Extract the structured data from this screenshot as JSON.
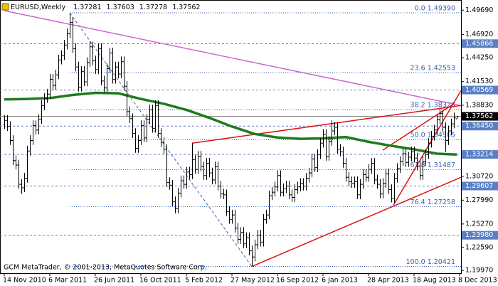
{
  "chart_data": {
    "type": "ohlc",
    "title": "EURUSD,Weekly",
    "bar_color": "#000000",
    "open": [
      1.366,
      1.371,
      1.364,
      1.348,
      1.325,
      1.32,
      1.298,
      1.294,
      1.305,
      1.336,
      1.348,
      1.365,
      1.36,
      1.372,
      1.388,
      1.396,
      1.401,
      1.418,
      1.411,
      1.423,
      1.44,
      1.445,
      1.457,
      1.47,
      1.483,
      1.453,
      1.432,
      1.409,
      1.427,
      1.415,
      1.437,
      1.455,
      1.439,
      1.429,
      1.453,
      1.416,
      1.408,
      1.43,
      1.448,
      1.418,
      1.432,
      1.424,
      1.438,
      1.41,
      1.381,
      1.373,
      1.356,
      1.339,
      1.348,
      1.365,
      1.351,
      1.372,
      1.383,
      1.362,
      1.388,
      1.356,
      1.346,
      1.338,
      1.3,
      1.297,
      1.278,
      1.27,
      1.288,
      1.302,
      1.298,
      1.312,
      1.309,
      1.326,
      1.315,
      1.33,
      1.318,
      1.308,
      1.322,
      1.311,
      1.303,
      1.318,
      1.296,
      1.287,
      1.286,
      1.267,
      1.258,
      1.263,
      1.248,
      1.235,
      1.243,
      1.23,
      1.237,
      1.222,
      1.215,
      1.229,
      1.24,
      1.232,
      1.258,
      1.263,
      1.285,
      1.289,
      1.295,
      1.308,
      1.289,
      1.293,
      1.296,
      1.286,
      1.283,
      1.292,
      1.295,
      1.299,
      1.296,
      1.305,
      1.311,
      1.327,
      1.317,
      1.332,
      1.345,
      1.355,
      1.33,
      1.347,
      1.359,
      1.363,
      1.338,
      1.335,
      1.322,
      1.306,
      1.301,
      1.299,
      1.301,
      1.286,
      1.298,
      1.309,
      1.306,
      1.315,
      1.322,
      1.303,
      1.298,
      1.287,
      1.299,
      1.31,
      1.292,
      1.282,
      1.305,
      1.316,
      1.324,
      1.333,
      1.323,
      1.329,
      1.335,
      1.328,
      1.319,
      1.308,
      1.324,
      1.332,
      1.345,
      1.353,
      1.36,
      1.372,
      1.379,
      1.363,
      1.348,
      1.359,
      1.367,
      1.37281
    ],
    "high": [
      1.377,
      1.377,
      1.37,
      1.354,
      1.331,
      1.326,
      1.304,
      1.311,
      1.342,
      1.354,
      1.371,
      1.371,
      1.378,
      1.394,
      1.402,
      1.407,
      1.424,
      1.424,
      1.429,
      1.446,
      1.451,
      1.463,
      1.476,
      1.4939,
      1.489,
      1.459,
      1.438,
      1.433,
      1.433,
      1.443,
      1.461,
      1.461,
      1.445,
      1.459,
      1.459,
      1.422,
      1.436,
      1.454,
      1.454,
      1.438,
      1.438,
      1.444,
      1.444,
      1.416,
      1.387,
      1.379,
      1.362,
      1.354,
      1.371,
      1.371,
      1.378,
      1.389,
      1.389,
      1.394,
      1.394,
      1.362,
      1.352,
      1.344,
      1.306,
      1.303,
      1.284,
      1.294,
      1.308,
      1.308,
      1.318,
      1.318,
      1.345,
      1.332,
      1.336,
      1.336,
      1.324,
      1.328,
      1.328,
      1.317,
      1.324,
      1.324,
      1.302,
      1.293,
      1.292,
      1.273,
      1.269,
      1.269,
      1.254,
      1.249,
      1.249,
      1.243,
      1.243,
      1.228,
      1.235,
      1.246,
      1.246,
      1.264,
      1.269,
      1.291,
      1.295,
      1.301,
      1.314,
      1.314,
      1.299,
      1.302,
      1.302,
      1.292,
      1.298,
      1.301,
      1.305,
      1.305,
      1.311,
      1.317,
      1.333,
      1.333,
      1.338,
      1.351,
      1.361,
      1.361,
      1.353,
      1.371,
      1.369,
      1.369,
      1.344,
      1.341,
      1.328,
      1.312,
      1.307,
      1.307,
      1.307,
      1.304,
      1.315,
      1.315,
      1.321,
      1.328,
      1.328,
      1.309,
      1.304,
      1.305,
      1.316,
      1.316,
      1.298,
      1.311,
      1.322,
      1.33,
      1.339,
      1.339,
      1.335,
      1.341,
      1.341,
      1.334,
      1.325,
      1.33,
      1.338,
      1.351,
      1.359,
      1.366,
      1.378,
      1.3832,
      1.382,
      1.369,
      1.365,
      1.373,
      1.38,
      1.37603
    ],
    "low": [
      1.361,
      1.359,
      1.343,
      1.32,
      1.315,
      1.293,
      1.287,
      1.289,
      1.3,
      1.331,
      1.343,
      1.355,
      1.355,
      1.367,
      1.383,
      1.391,
      1.396,
      1.406,
      1.406,
      1.418,
      1.435,
      1.44,
      1.452,
      1.465,
      1.448,
      1.427,
      1.404,
      1.404,
      1.41,
      1.41,
      1.432,
      1.434,
      1.424,
      1.424,
      1.411,
      1.403,
      1.403,
      1.425,
      1.413,
      1.413,
      1.419,
      1.419,
      1.405,
      1.376,
      1.368,
      1.351,
      1.334,
      1.334,
      1.343,
      1.346,
      1.346,
      1.367,
      1.357,
      1.357,
      1.351,
      1.341,
      1.333,
      1.295,
      1.292,
      1.273,
      1.265,
      1.265,
      1.283,
      1.293,
      1.293,
      1.304,
      1.304,
      1.31,
      1.31,
      1.313,
      1.303,
      1.303,
      1.306,
      1.298,
      1.298,
      1.291,
      1.282,
      1.281,
      1.262,
      1.253,
      1.253,
      1.243,
      1.23,
      1.23,
      1.225,
      1.225,
      1.217,
      1.2042,
      1.21,
      1.224,
      1.227,
      1.227,
      1.253,
      1.258,
      1.28,
      1.284,
      1.29,
      1.284,
      1.284,
      1.288,
      1.281,
      1.278,
      1.278,
      1.287,
      1.29,
      1.291,
      1.291,
      1.3,
      1.306,
      1.312,
      1.312,
      1.327,
      1.34,
      1.325,
      1.325,
      1.342,
      1.354,
      1.333,
      1.33,
      1.317,
      1.301,
      1.296,
      1.294,
      1.294,
      1.281,
      1.281,
      1.293,
      1.301,
      1.301,
      1.31,
      1.298,
      1.293,
      1.282,
      1.282,
      1.294,
      1.287,
      1.2773,
      1.277,
      1.3,
      1.311,
      1.319,
      1.318,
      1.318,
      1.324,
      1.323,
      1.314,
      1.303,
      1.303,
      1.319,
      1.327,
      1.34,
      1.348,
      1.355,
      1.367,
      1.358,
      1.335,
      1.343,
      1.354,
      1.362,
      1.37278
    ],
    "close": [
      1.371,
      1.364,
      1.348,
      1.325,
      1.32,
      1.298,
      1.294,
      1.305,
      1.336,
      1.348,
      1.365,
      1.36,
      1.372,
      1.388,
      1.396,
      1.401,
      1.418,
      1.411,
      1.423,
      1.44,
      1.445,
      1.457,
      1.47,
      1.483,
      1.453,
      1.432,
      1.409,
      1.427,
      1.415,
      1.437,
      1.455,
      1.439,
      1.429,
      1.453,
      1.416,
      1.408,
      1.43,
      1.448,
      1.418,
      1.432,
      1.424,
      1.438,
      1.41,
      1.381,
      1.373,
      1.356,
      1.339,
      1.348,
      1.365,
      1.351,
      1.372,
      1.383,
      1.362,
      1.388,
      1.356,
      1.346,
      1.338,
      1.3,
      1.297,
      1.278,
      1.27,
      1.288,
      1.302,
      1.298,
      1.312,
      1.309,
      1.326,
      1.315,
      1.33,
      1.318,
      1.308,
      1.322,
      1.311,
      1.303,
      1.318,
      1.296,
      1.287,
      1.286,
      1.267,
      1.258,
      1.263,
      1.248,
      1.235,
      1.243,
      1.23,
      1.237,
      1.222,
      1.215,
      1.229,
      1.24,
      1.232,
      1.258,
      1.263,
      1.285,
      1.289,
      1.295,
      1.308,
      1.289,
      1.293,
      1.296,
      1.286,
      1.283,
      1.292,
      1.295,
      1.299,
      1.296,
      1.305,
      1.311,
      1.327,
      1.317,
      1.332,
      1.345,
      1.355,
      1.33,
      1.347,
      1.359,
      1.363,
      1.338,
      1.335,
      1.322,
      1.306,
      1.301,
      1.299,
      1.301,
      1.286,
      1.298,
      1.309,
      1.306,
      1.315,
      1.322,
      1.303,
      1.298,
      1.287,
      1.299,
      1.31,
      1.292,
      1.282,
      1.305,
      1.316,
      1.324,
      1.333,
      1.323,
      1.329,
      1.335,
      1.328,
      1.319,
      1.308,
      1.324,
      1.332,
      1.345,
      1.353,
      1.36,
      1.372,
      1.379,
      1.363,
      1.348,
      1.359,
      1.367,
      1.374,
      1.37562
    ],
    "xlim": [
      -1.5,
      160.5
    ],
    "xticks": [
      {
        "value": 0,
        "label": "14 Nov 2010"
      },
      {
        "value": 16,
        "label": "6 Mar 2011"
      },
      {
        "value": 32,
        "label": "26 Jun 2011"
      },
      {
        "value": 48,
        "label": "16 Oct 2011"
      },
      {
        "value": 64,
        "label": "5 Feb 2012"
      },
      {
        "value": 80,
        "label": "27 May 2012"
      },
      {
        "value": 96,
        "label": "16 Sep 2012"
      },
      {
        "value": 112,
        "label": "6 Jan 2013"
      },
      {
        "value": 128,
        "label": "28 Apr 2013"
      },
      {
        "value": 144,
        "label": "18 Aug 2013"
      },
      {
        "value": 160,
        "label": "8 Dec 2013"
      }
    ],
    "ylim": [
      1.1965,
      1.5085
    ],
    "yticks": [
      {
        "value": 1.4969,
        "label": "1.49690"
      },
      {
        "value": 1.4692,
        "label": "1.46920"
      },
      {
        "value": 1.4425,
        "label": "1.44250"
      },
      {
        "value": 1.4153,
        "label": "1.41530"
      },
      {
        "value": 1.3883,
        "label": "1.38830"
      },
      {
        "value": 1.3072,
        "label": "1.30720"
      },
      {
        "value": 1.2799,
        "label": "1.27990"
      },
      {
        "value": 1.2527,
        "label": "1.25270"
      },
      {
        "value": 1.2259,
        "label": "1.22590"
      },
      {
        "value": 1.1997,
        "label": "1.19970"
      }
    ],
    "hlines": [
      1.45866,
      1.40569,
      {
        "value": 1.3645,
        "label": "1.36450"
      },
      1.33214,
      1.29607,
      {
        "value": 1.2398,
        "label": "1.23980"
      }
    ],
    "hline_color": "#5b7fc4",
    "fib_color": "#3a5fb0",
    "fib_levels": [
      {
        "value": 1.4939,
        "label": "0.0 1.49390"
      },
      {
        "value": 1.42553,
        "label": "23.6 1.42553"
      },
      {
        "value": 1.38323,
        "label": "38.2 1.38323"
      },
      {
        "value": 1.34905,
        "label": "50.0 1.34905"
      },
      {
        "value": 1.31487,
        "label": "61.8 1.31487"
      },
      {
        "value": 1.27258,
        "label": "76.4 1.27258"
      },
      {
        "value": 1.20421,
        "label": "100.0 1.20421"
      }
    ],
    "fib_line": {
      "x": [
        23,
        87
      ],
      "values": [
        1.4939,
        1.2042
      ]
    },
    "moving_average": {
      "color": "#1e7b1e",
      "x": [
        0,
        8,
        16,
        24,
        32,
        40,
        48,
        56,
        64,
        72,
        80,
        88,
        96,
        104,
        112,
        120,
        128,
        136,
        144,
        152,
        159
      ],
      "values": [
        1.395,
        1.3955,
        1.3965,
        1.4,
        1.4025,
        1.402,
        1.3955,
        1.39,
        1.383,
        1.374,
        1.364,
        1.3555,
        1.3515,
        1.35,
        1.3505,
        1.352,
        1.3465,
        1.342,
        1.338,
        1.333,
        1.332
      ]
    },
    "trendlines": [
      {
        "color": "#cc66cc",
        "x": [
          0,
          160.5
        ],
        "values": [
          1.4963,
          1.388
        ]
      },
      {
        "color": "#dd1111",
        "x": [
          66,
          160.5
        ],
        "values": [
          1.345,
          1.388
        ]
      },
      {
        "color": "#dd1111",
        "x": [
          87,
          160.5
        ],
        "values": [
          1.2042,
          1.306
        ]
      },
      {
        "color": "#dd1111",
        "x": [
          136.8,
          160.5
        ],
        "values": [
          1.2745,
          1.405
        ]
      },
      {
        "color": "#dd1111",
        "x": [
          133,
          158
        ],
        "values": [
          1.337,
          1.39
        ]
      }
    ],
    "footer": "GCM MetaTrader, © 2001-2013, MetaQuotes Software Corp."
  }
}
